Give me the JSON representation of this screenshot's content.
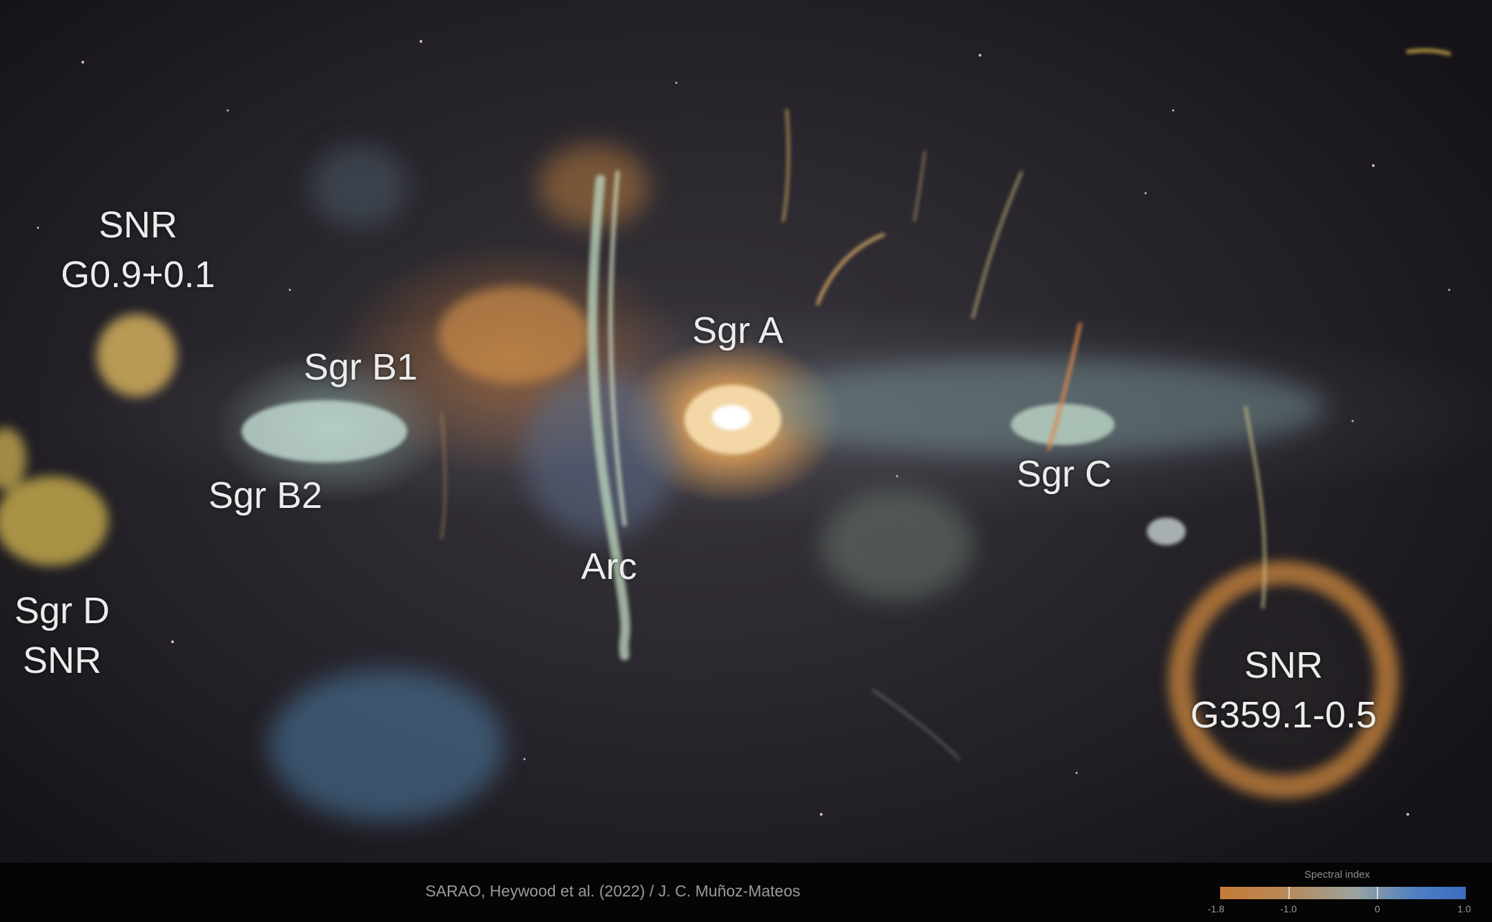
{
  "image": {
    "labels": {
      "snr_g09": [
        "SNR",
        "G0.9+0.1"
      ],
      "sgr_b1": "Sgr B1",
      "sgr_b2": "Sgr B2",
      "sgr_d": [
        "Sgr D",
        "SNR"
      ],
      "arc": "Arc",
      "sgr_a": "Sgr A",
      "sgr_c": "Sgr C",
      "snr_g359": [
        "SNR",
        "G359.1-0.5"
      ]
    },
    "credit": "SARAO, Heywood et al. (2022) / J. C. Muñoz-Mateos"
  },
  "colorbar": {
    "title": "Spectral index",
    "tick_labels": [
      "-1.8",
      "-1.0",
      "0",
      "1.0"
    ],
    "colors": {
      "low": "#c57a36",
      "mid": "#9aa3a0",
      "high": "#3b6dc4"
    }
  }
}
